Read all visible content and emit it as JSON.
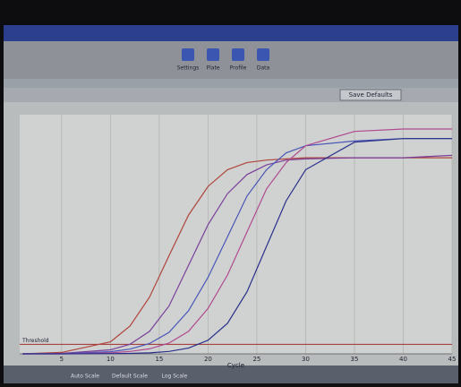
{
  "chart_data": {
    "type": "line",
    "xlabel": "Cycle",
    "x": [
      1,
      5,
      10,
      12,
      14,
      16,
      18,
      20,
      22,
      24,
      26,
      28,
      30,
      35,
      40,
      45
    ],
    "series": [
      {
        "color": "#b0443c",
        "values": [
          0,
          0.006,
          0.05,
          0.116,
          0.237,
          0.41,
          0.58,
          0.7,
          0.77,
          0.8,
          0.81,
          0.815,
          0.82,
          0.82,
          0.82,
          0.82
        ]
      },
      {
        "color": "#7a3f9a",
        "values": [
          0,
          0.002,
          0.017,
          0.04,
          0.094,
          0.2,
          0.37,
          0.54,
          0.67,
          0.75,
          0.79,
          0.81,
          0.815,
          0.82,
          0.82,
          0.83
        ]
      },
      {
        "color": "#4a56b8",
        "values": [
          0,
          0.001,
          0.009,
          0.02,
          0.043,
          0.09,
          0.18,
          0.32,
          0.49,
          0.66,
          0.77,
          0.84,
          0.87,
          0.89,
          0.9,
          0.9
        ]
      },
      {
        "color": "#b04a90",
        "values": [
          0,
          0,
          0.004,
          0.01,
          0.021,
          0.045,
          0.094,
          0.19,
          0.33,
          0.51,
          0.69,
          0.8,
          0.87,
          0.93,
          0.94,
          0.94
        ]
      },
      {
        "color": "#2a2f8a",
        "values": [
          0,
          0,
          0.001,
          0.002,
          0.004,
          0.01,
          0.024,
          0.057,
          0.128,
          0.26,
          0.45,
          0.64,
          0.77,
          0.885,
          0.9,
          0.9
        ]
      }
    ],
    "threshold": {
      "value": 0.04,
      "label": "Threshold",
      "color": "#a03030"
    },
    "xlim": [
      0.7,
      45
    ],
    "xticks": [
      5,
      10,
      15,
      20,
      25,
      30,
      35,
      40,
      45
    ],
    "ylim": [
      0,
      1
    ],
    "grid": true
  },
  "toolbar_buttons": [
    "Settings",
    "Plate",
    "Profile",
    "Data"
  ],
  "options_buttons": [
    "Save Defaults"
  ],
  "bottom_tabs": [
    "Auto Scale",
    "Default Scale",
    "Log Scale"
  ]
}
